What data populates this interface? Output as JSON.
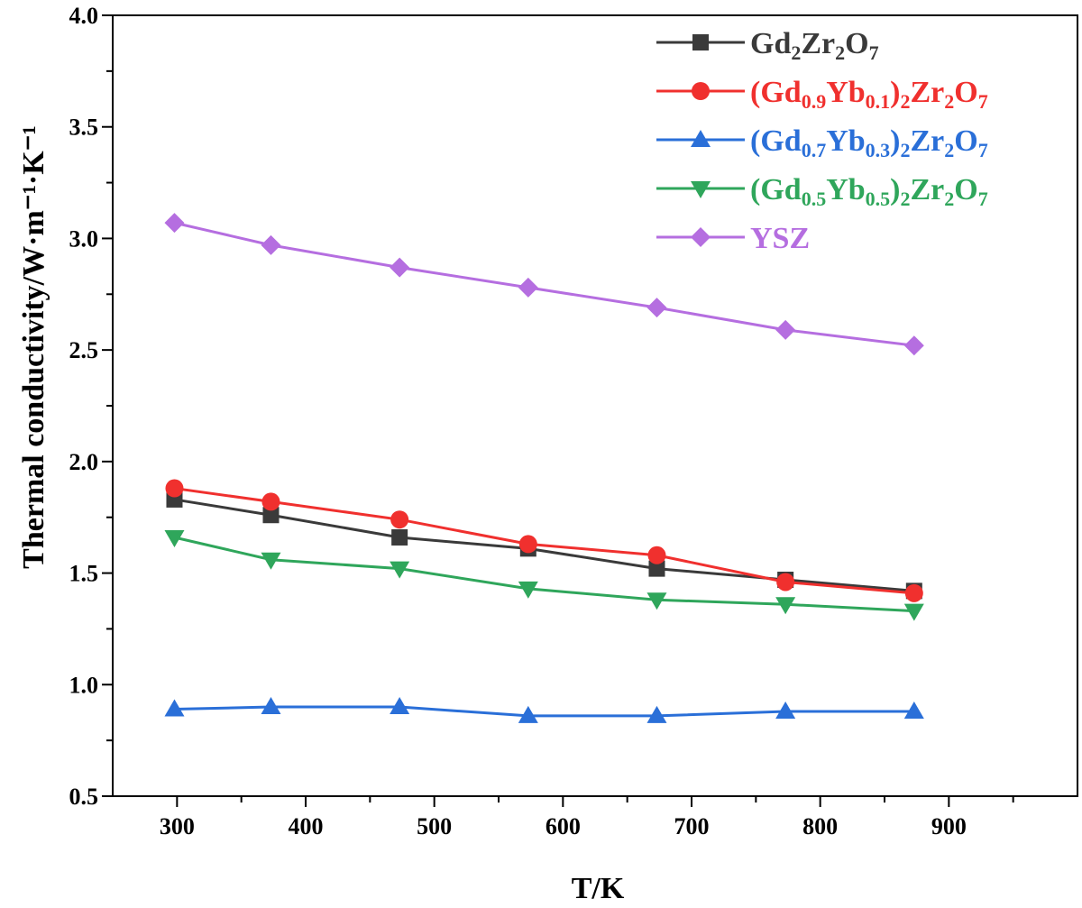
{
  "chart_data": {
    "type": "line",
    "xlabel": "T/K",
    "ylabel": "Thermal conductivity/W·m⁻¹·K⁻¹",
    "xlim": [
      250,
      1000
    ],
    "ylim": [
      0.5,
      4.0
    ],
    "xticks": [
      "300",
      "400",
      "500",
      "600",
      "700",
      "800",
      "900"
    ],
    "yticks": [
      "0.5",
      "1.0",
      "1.5",
      "2.0",
      "2.5",
      "3.0",
      "3.5",
      "4.0"
    ],
    "x": [
      298,
      373,
      473,
      573,
      673,
      773,
      873
    ],
    "legend_position": "top-right",
    "grid": false,
    "series": [
      {
        "name": "Gd2Zr2O7",
        "name_parts": [
          [
            "Gd",
            ""
          ],
          [
            "2",
            "sub"
          ],
          [
            "Zr",
            ""
          ],
          [
            "2",
            "sub"
          ],
          [
            "O",
            ""
          ],
          [
            "7",
            "sub"
          ]
        ],
        "color": "#3a3a3a",
        "marker": "square",
        "values": [
          1.83,
          1.76,
          1.66,
          1.61,
          1.52,
          1.47,
          1.42
        ]
      },
      {
        "name": "(Gd0.9Yb0.1)2Zr2O7",
        "name_parts": [
          [
            "(Gd",
            ""
          ],
          [
            "0.9",
            "sub"
          ],
          [
            "Yb",
            ""
          ],
          [
            "0.1",
            "sub"
          ],
          [
            ")",
            ""
          ],
          [
            "2",
            "sub"
          ],
          [
            "Zr",
            ""
          ],
          [
            "2",
            "sub"
          ],
          [
            "O",
            ""
          ],
          [
            "7",
            "sub"
          ]
        ],
        "color": "#f0302e",
        "marker": "circle",
        "values": [
          1.88,
          1.82,
          1.74,
          1.63,
          1.58,
          1.46,
          1.41
        ]
      },
      {
        "name": "(Gd0.7Yb0.3)2Zr2O7",
        "name_parts": [
          [
            "(Gd",
            ""
          ],
          [
            "0.7",
            "sub"
          ],
          [
            "Yb",
            ""
          ],
          [
            "0.3",
            "sub"
          ],
          [
            ")",
            ""
          ],
          [
            "2",
            "sub"
          ],
          [
            "Zr",
            ""
          ],
          [
            "2",
            "sub"
          ],
          [
            "O",
            ""
          ],
          [
            "7",
            "sub"
          ]
        ],
        "color": "#2a6fd8",
        "marker": "triangle-up",
        "values": [
          0.89,
          0.9,
          0.9,
          0.86,
          0.86,
          0.88,
          0.88
        ]
      },
      {
        "name": "(Gd0.5Yb0.5)2Zr2O7",
        "name_parts": [
          [
            "(Gd",
            ""
          ],
          [
            "0.5",
            "sub"
          ],
          [
            "Yb",
            ""
          ],
          [
            "0.5",
            "sub"
          ],
          [
            ")",
            ""
          ],
          [
            "2",
            "sub"
          ],
          [
            "Zr",
            ""
          ],
          [
            "2",
            "sub"
          ],
          [
            "O",
            ""
          ],
          [
            "7",
            "sub"
          ]
        ],
        "color": "#2fa65b",
        "marker": "triangle-down",
        "values": [
          1.66,
          1.56,
          1.52,
          1.43,
          1.38,
          1.36,
          1.33
        ]
      },
      {
        "name": "YSZ",
        "name_parts": [
          [
            "YSZ",
            ""
          ]
        ],
        "color": "#b56ee0",
        "marker": "diamond",
        "values": [
          3.07,
          2.97,
          2.87,
          2.78,
          2.69,
          2.59,
          2.52
        ]
      }
    ]
  }
}
